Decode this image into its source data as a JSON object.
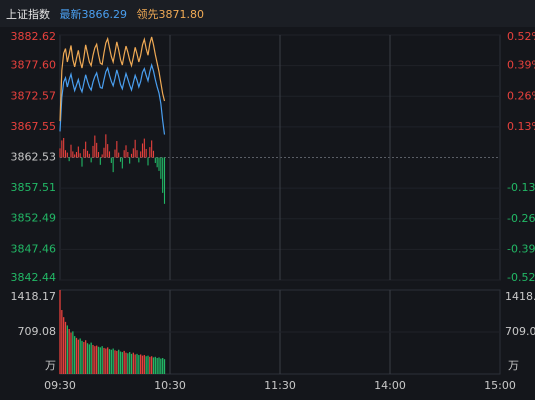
{
  "header": {
    "name": "上证指数",
    "latest_label": "最新",
    "latest": "3866.29",
    "lead_label": "领先",
    "lead": "3871.80"
  },
  "chart_data": [
    {
      "type": "line",
      "x": [
        0,
        1,
        2,
        3,
        4,
        5,
        6,
        7,
        8,
        9,
        10,
        11,
        12,
        13,
        14,
        15,
        16,
        17,
        18,
        19,
        20,
        21,
        22,
        23,
        24,
        25,
        26,
        27,
        28,
        29,
        30,
        31,
        32,
        33,
        34,
        35,
        36,
        37,
        38,
        39,
        40,
        41,
        42,
        43,
        44,
        45,
        46,
        47,
        48,
        49,
        50,
        51,
        52,
        53,
        54,
        55,
        56,
        57
      ],
      "xlim": [
        0,
        240
      ],
      "xticks": [
        {
          "value": 0,
          "label": "09:30"
        },
        {
          "value": 60,
          "label": "10:30"
        },
        {
          "value": 120,
          "label": "11:30"
        },
        {
          "value": 180,
          "label": "14:00"
        },
        {
          "value": 240,
          "label": "15:00"
        }
      ],
      "ylim": [
        3842.44,
        3882.62
      ],
      "yticks": [
        3882.62,
        {
          "value": 3877.6,
          "label": "3877.60"
        },
        3872.57,
        3867.55,
        3862.53,
        3857.51,
        3852.49,
        3847.46,
        3842.44
      ],
      "y2lim": [
        -0.52,
        0.52
      ],
      "y2ticks": [
        {
          "value": 0.52,
          "label": "0.52%"
        },
        {
          "value": 0.39,
          "label": "0.39%"
        },
        {
          "value": 0.26,
          "label": "0.26%"
        },
        {
          "value": 0.13,
          "label": "0.13%"
        },
        {
          "value": -0.13,
          "label": "-0.13%"
        },
        {
          "value": -0.26,
          "label": "-0.26%"
        },
        {
          "value": -0.39,
          "label": "-0.39%"
        },
        {
          "value": -0.52,
          "label": "-0.52%"
        }
      ],
      "up_color": "#e8413d",
      "down_color": "#22b866",
      "grid": true,
      "series": [
        {
          "color": "#4a9ff0",
          "values": [
            3866.8,
            3872.4,
            3874.9,
            3875.6,
            3874.1,
            3875.3,
            3876.2,
            3874.7,
            3873.5,
            3874.4,
            3875.3,
            3874.0,
            3873.3,
            3874.7,
            3876.1,
            3875.0,
            3874.1,
            3873.6,
            3874.9,
            3875.8,
            3876.4,
            3875.1,
            3874.0,
            3873.9,
            3875.3,
            3876.6,
            3877.2,
            3876.0,
            3875.0,
            3874.3,
            3875.5,
            3876.9,
            3875.8,
            3874.5,
            3873.8,
            3875.1,
            3876.3,
            3875.4,
            3874.4,
            3873.6,
            3874.8,
            3876.0,
            3875.2,
            3874.1,
            3875.0,
            3876.5,
            3877.1,
            3876.0,
            3875.1,
            3876.6,
            3877.7,
            3876.7,
            3875.3,
            3874.1,
            3873.1,
            3871.4,
            3868.6,
            3866.29
          ]
        },
        {
          "color": "#f0aa55",
          "values": [
            3868.5,
            3876.8,
            3879.6,
            3880.4,
            3878.2,
            3879.5,
            3880.9,
            3878.6,
            3877.4,
            3878.8,
            3880.1,
            3878.3,
            3877.2,
            3878.9,
            3881.0,
            3879.6,
            3878.2,
            3877.6,
            3879.3,
            3880.5,
            3881.1,
            3879.4,
            3878.0,
            3877.8,
            3879.7,
            3881.3,
            3882.0,
            3880.5,
            3879.1,
            3878.2,
            3879.8,
            3881.5,
            3880.2,
            3878.6,
            3877.7,
            3879.4,
            3880.8,
            3879.8,
            3878.5,
            3877.6,
            3879.0,
            3880.6,
            3879.5,
            3878.2,
            3879.3,
            3881.0,
            3881.9,
            3880.4,
            3879.3,
            3881.2,
            3882.3,
            3881.0,
            3879.4,
            3878.0,
            3876.6,
            3874.8,
            3873.0,
            3871.8
          ]
        }
      ],
      "strength": [
        1.5,
        2.8,
        3.2,
        1.2,
        0.8,
        -0.6,
        2.1,
        1.0,
        0.5,
        0.9,
        1.8,
        0.7,
        -1.5,
        1.4,
        2.6,
        1.1,
        0.6,
        -0.8,
        1.9,
        3.6,
        2.4,
        0.9,
        -1.2,
        0.5,
        1.6,
        3.8,
        2.2,
        1.0,
        -0.9,
        -2.4,
        1.3,
        2.7,
        0.8,
        -0.7,
        -1.8,
        1.2,
        2.0,
        0.9,
        -1.0,
        0.6,
        1.5,
        2.9,
        1.2,
        -0.8,
        1.0,
        2.3,
        3.1,
        1.4,
        -1.3,
        1.7,
        2.8,
        1.1,
        -0.9,
        -1.6,
        -2.2,
        -3.5,
        -5.8,
        -7.6
      ]
    },
    {
      "type": "bar",
      "ylim": [
        0,
        1418.17
      ],
      "yticks": [
        1418.17,
        709.08
      ],
      "unit": "万",
      "values": [
        1418.17,
        1080,
        960,
        880,
        820,
        760,
        700,
        720,
        640,
        610,
        580,
        600,
        560,
        540,
        570,
        520,
        500,
        530,
        490,
        470,
        480,
        460,
        450,
        470,
        440,
        430,
        450,
        420,
        410,
        430,
        400,
        390,
        410,
        380,
        370,
        390,
        360,
        350,
        370,
        340,
        360,
        330,
        340,
        320,
        330,
        310,
        320,
        300,
        310,
        290,
        300,
        280,
        290,
        270,
        280,
        260,
        270,
        250
      ]
    }
  ]
}
